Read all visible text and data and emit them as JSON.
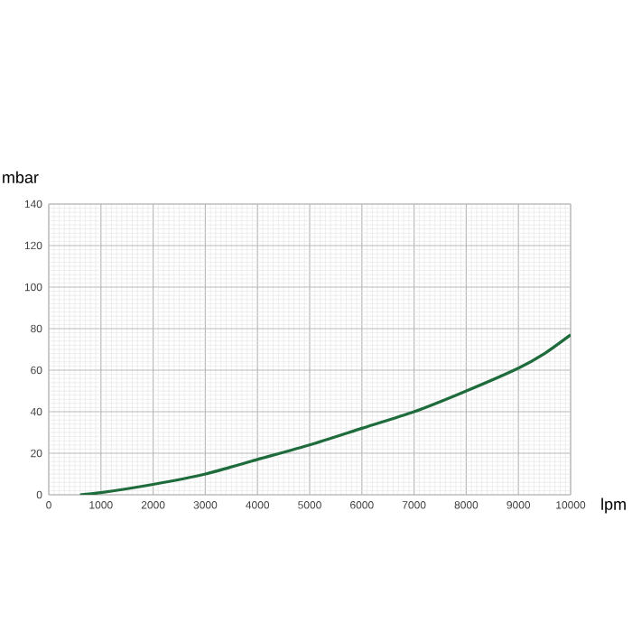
{
  "chart_data": {
    "type": "line",
    "xlabel": "lpm",
    "ylabel": "mbar",
    "x": [
      600,
      1000,
      2000,
      3000,
      4000,
      5000,
      6000,
      7000,
      8000,
      9000,
      9500,
      10000
    ],
    "series": [
      {
        "color": "#1e6b3c",
        "values": [
          0,
          1,
          5,
          10,
          17,
          24,
          32,
          40,
          50,
          61,
          68,
          77
        ]
      }
    ],
    "xlim": [
      0,
      10000
    ],
    "ylim": [
      0,
      140
    ],
    "xticks": [
      0,
      1000,
      2000,
      3000,
      4000,
      5000,
      6000,
      7000,
      8000,
      9000,
      10000
    ],
    "yticks": [
      0,
      20,
      40,
      60,
      80,
      100,
      120,
      140
    ],
    "grid": true,
    "marker": "none",
    "line_style": "solid"
  }
}
